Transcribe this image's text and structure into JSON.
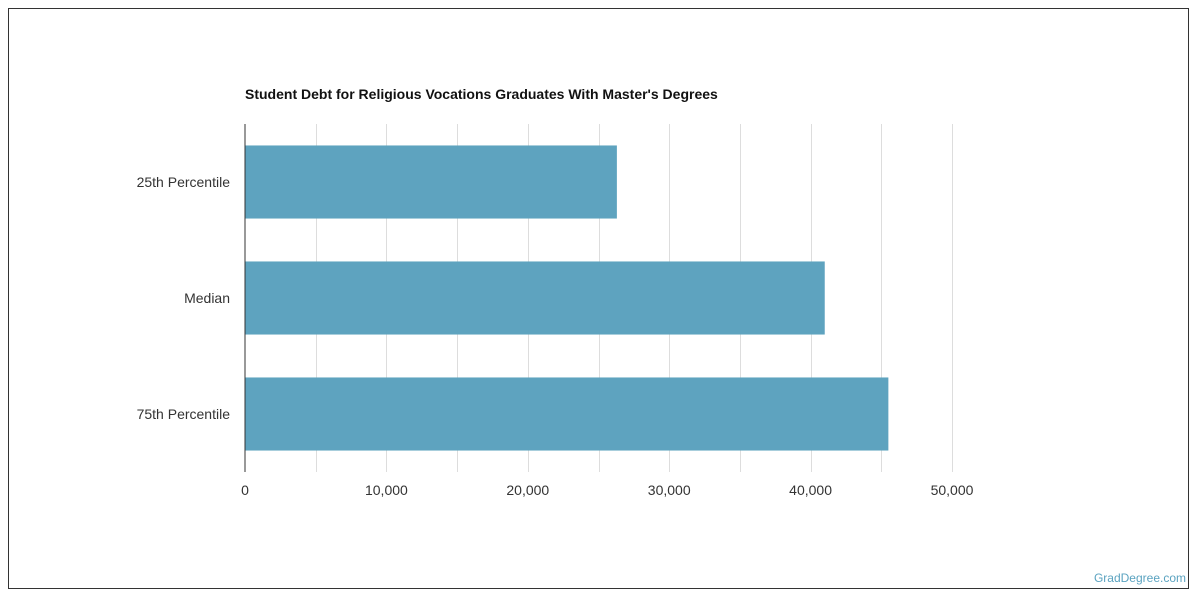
{
  "chart_data": {
    "type": "bar",
    "orientation": "horizontal",
    "title": "Student Debt for Religious Vocations Graduates With Master's Degrees",
    "categories": [
      "25th Percentile",
      "Median",
      "75th Percentile"
    ],
    "values": [
      26300,
      41000,
      45500
    ],
    "xlim": [
      0,
      50000
    ],
    "xticks": [
      0,
      10000,
      20000,
      30000,
      40000,
      50000
    ],
    "xtick_labels": [
      "0",
      "10,000",
      "20,000",
      "30,000",
      "40,000",
      "50,000"
    ],
    "xlabel": "",
    "ylabel": "",
    "bar_color": "#5ea3bf",
    "grid": true
  },
  "watermark": "GradDegree.com"
}
